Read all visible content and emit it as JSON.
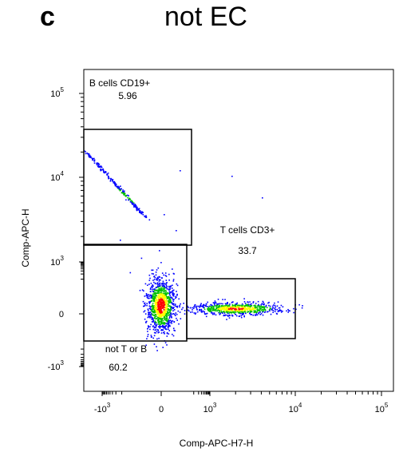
{
  "panel": {
    "letter": "c",
    "title": "not EC"
  },
  "chart_data": {
    "type": "scatter",
    "title": "not EC",
    "xlabel": "Comp-APC-H7-H",
    "ylabel": "Comp-APC-H",
    "x_scale": "biexponential",
    "y_scale": "biexponential",
    "xlim": [
      -3000,
      150000
    ],
    "ylim": [
      -3000,
      150000
    ],
    "x_ticks": [
      {
        "value": -1000,
        "label_base": "-10",
        "label_exp": "3"
      },
      {
        "value": 0,
        "label_base": "0",
        "label_exp": ""
      },
      {
        "value": 1000,
        "label_base": "10",
        "label_exp": "3"
      },
      {
        "value": 10000,
        "label_base": "10",
        "label_exp": "4"
      },
      {
        "value": 100000,
        "label_base": "10",
        "label_exp": "5"
      }
    ],
    "y_ticks": [
      {
        "value": 100000,
        "label_base": "10",
        "label_exp": "5"
      },
      {
        "value": 10000,
        "label_base": "10",
        "label_exp": "4"
      },
      {
        "value": 1000,
        "label_base": "10",
        "label_exp": "3"
      },
      {
        "value": 0,
        "label_base": "0",
        "label_exp": ""
      },
      {
        "value": -1000,
        "label_base": "-10",
        "label_exp": "3"
      }
    ],
    "gates": [
      {
        "name": "B cells CD19+",
        "percent": "5.96",
        "x_range": [
          -3000,
          500
        ],
        "y_range": [
          1200,
          40000
        ]
      },
      {
        "name": "T cells CD3+",
        "percent": "33.7",
        "x_range": [
          600,
          10000
        ],
        "y_range": [
          -800,
          600
        ]
      },
      {
        "name": "not T or B",
        "percent": "60.2",
        "x_range": [
          -3000,
          500
        ],
        "y_range": [
          -800,
          1200
        ]
      }
    ],
    "populations": [
      {
        "name": "B cells CD19+",
        "x_center": -1500,
        "y_center": 8000
      },
      {
        "name": "T cells CD3+",
        "x_center": 3000,
        "y_center": 0
      },
      {
        "name": "not T or B",
        "x_center": 0,
        "y_center": 0
      }
    ],
    "colors": {
      "low": "#0000ff",
      "mid": "#00c000",
      "high": "#ffff00",
      "peak": "#ff0000"
    },
    "grid": false
  }
}
